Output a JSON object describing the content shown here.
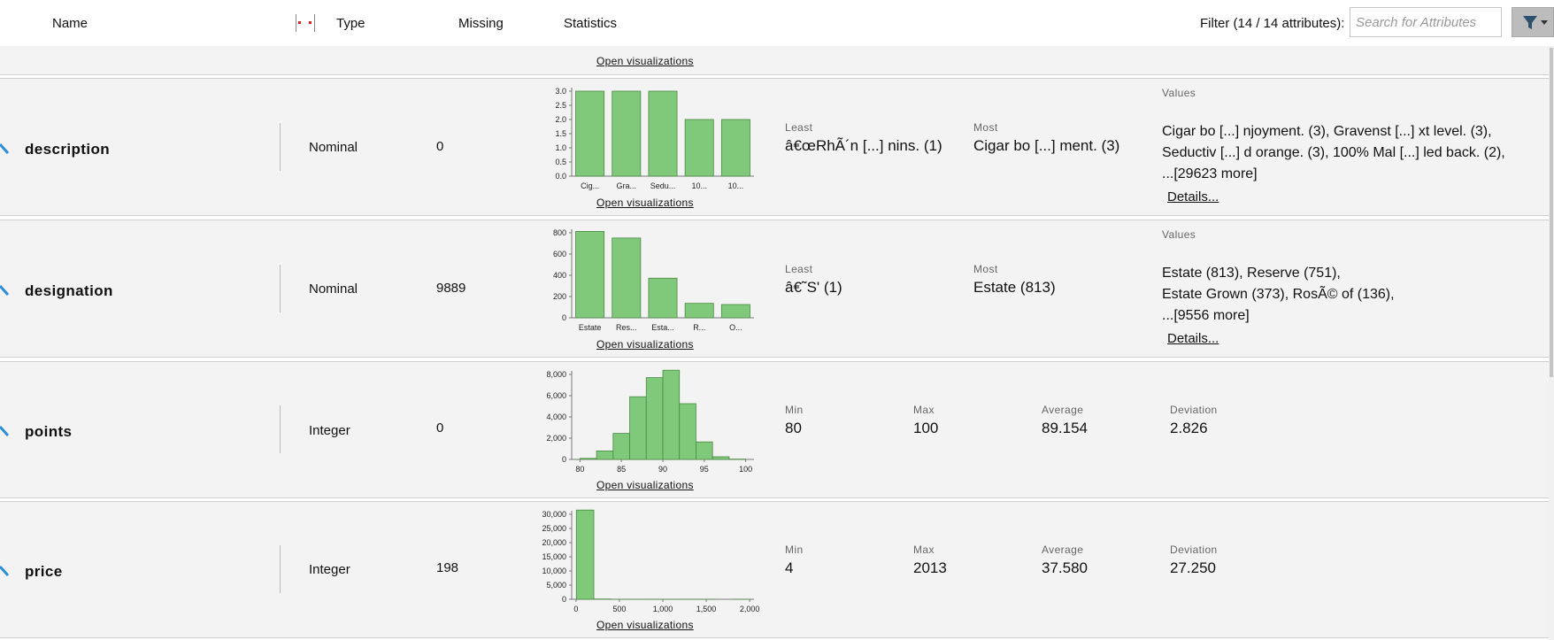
{
  "header": {
    "col_name": "Name",
    "col_type": "Type",
    "col_missing": "Missing",
    "col_statistics": "Statistics",
    "filter_label": "Filter (14 / 14 attributes):",
    "search_placeholder": "Search for Attributes"
  },
  "open_vis": "Open visualizations",
  "colors": {
    "bar_fill": "#80c87a",
    "bar_stroke": "#4a8a44",
    "accent_icon": "#2a8fd8"
  },
  "rows": [
    {
      "name": "description",
      "type": "Nominal",
      "missing": "0",
      "stats": {
        "least_label": "Least",
        "least_value": "â€œRhÃ´n [...] nins. (1)",
        "most_label": "Most",
        "most_value": "Cigar bo [...] ment. (3)",
        "values_label": "Values",
        "values_lines": [
          "Cigar bo [...] njoyment. (3), Gravenst [...] xt level. (3),",
          "Seductiv [...] d orange. (3), 100% Mal [...] led back. (2),",
          "...[29623 more]"
        ],
        "details": "Details..."
      }
    },
    {
      "name": "designation",
      "type": "Nominal",
      "missing": "9889",
      "stats": {
        "least_label": "Least",
        "least_value": "â€˜S' (1)",
        "most_label": "Most",
        "most_value": "Estate (813)",
        "values_label": "Values",
        "values_lines": [
          "Estate (813), Reserve (751),",
          "Estate Grown (373), RosÃ© of (136),",
          "...[9556 more]"
        ],
        "details": "Details..."
      }
    },
    {
      "name": "points",
      "type": "Integer",
      "missing": "0",
      "stats": {
        "min_label": "Min",
        "min_value": "80",
        "max_label": "Max",
        "max_value": "100",
        "avg_label": "Average",
        "avg_value": "89.154",
        "dev_label": "Deviation",
        "dev_value": "2.826"
      }
    },
    {
      "name": "price",
      "type": "Integer",
      "missing": "198",
      "stats": {
        "min_label": "Min",
        "min_value": "4",
        "max_label": "Max",
        "max_value": "2013",
        "avg_label": "Average",
        "avg_value": "37.580",
        "dev_label": "Deviation",
        "dev_value": "27.250"
      }
    }
  ],
  "chart_data": [
    {
      "type": "bar",
      "title": "description",
      "categories": [
        "Cig...",
        "Gra...",
        "Sedu...",
        "10...",
        "10..."
      ],
      "values": [
        3,
        3,
        3,
        2,
        2
      ],
      "ylim": [
        0,
        3
      ],
      "yticks": [
        "0.0",
        "0.5",
        "1.0",
        "1.5",
        "2.0",
        "2.5",
        "3.0"
      ]
    },
    {
      "type": "bar",
      "title": "designation",
      "categories": [
        "Estate",
        "Res...",
        "Esta...",
        "R...",
        "O..."
      ],
      "values": [
        813,
        751,
        373,
        136,
        125
      ],
      "ylim": [
        0,
        800
      ],
      "yticks": [
        "0",
        "200",
        "400",
        "600",
        "800"
      ]
    },
    {
      "type": "histogram",
      "title": "points",
      "bins": [
        [
          80,
          82,
          99
        ],
        [
          82,
          84,
          800
        ],
        [
          84,
          86,
          2450
        ],
        [
          86,
          88,
          5900
        ],
        [
          88,
          90,
          7700
        ],
        [
          90,
          92,
          8700
        ],
        [
          92,
          94,
          5250
        ],
        [
          94,
          96,
          1650
        ],
        [
          96,
          98,
          250
        ],
        [
          98,
          100,
          30
        ]
      ],
      "xlim": [
        79,
        101
      ],
      "ylim": [
        0,
        8000
      ],
      "xticks": [
        "80",
        "85",
        "90",
        "95",
        "100"
      ],
      "yticks": [
        "0",
        "2,000",
        "4,000",
        "6,000",
        "8,000"
      ]
    },
    {
      "type": "histogram",
      "title": "price",
      "bins": [
        [
          4,
          205,
          32200
        ],
        [
          205,
          406,
          90
        ],
        [
          406,
          607,
          20
        ],
        [
          607,
          808,
          8
        ],
        [
          808,
          1009,
          4
        ],
        [
          1009,
          1210,
          2
        ],
        [
          1210,
          1411,
          1
        ],
        [
          1411,
          1612,
          1
        ],
        [
          1612,
          1813,
          0
        ],
        [
          1813,
          2013,
          1
        ]
      ],
      "xlim": [
        -50,
        2050
      ],
      "ylim": [
        0,
        30000
      ],
      "xticks": [
        "0",
        "500",
        "1,000",
        "1,500",
        "2,000"
      ],
      "yticks": [
        "0",
        "5,000",
        "10,000",
        "15,000",
        "20,000",
        "25,000",
        "30,000"
      ]
    }
  ]
}
